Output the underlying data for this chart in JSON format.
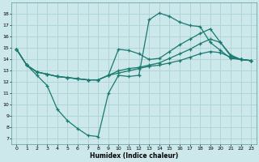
{
  "background_color": "#cce8ea",
  "grid_color": "#b0d4d8",
  "line_color": "#1a7a6e",
  "xlabel": "Humidex (Indice chaleur)",
  "xlim": [
    -0.5,
    23.5
  ],
  "ylim": [
    6.5,
    19.0
  ],
  "yticks": [
    7,
    8,
    9,
    10,
    11,
    12,
    13,
    14,
    15,
    16,
    17,
    18
  ],
  "xticks": [
    0,
    1,
    2,
    3,
    4,
    5,
    6,
    7,
    8,
    9,
    10,
    11,
    12,
    13,
    14,
    15,
    16,
    17,
    18,
    19,
    20,
    21,
    22,
    23
  ],
  "line1_x": [
    0,
    1,
    2,
    3,
    4,
    5,
    6,
    7,
    8,
    9,
    10,
    11,
    12,
    13,
    14,
    15,
    16,
    17,
    18,
    19,
    20,
    21,
    22,
    23
  ],
  "line1_y": [
    14.9,
    13.5,
    12.6,
    11.7,
    9.6,
    8.6,
    7.9,
    7.3,
    7.2,
    11.0,
    12.6,
    12.5,
    12.6,
    17.5,
    18.1,
    17.8,
    17.3,
    17.0,
    16.9,
    15.5,
    14.8,
    14.1,
    14.0,
    13.9
  ],
  "line2_x": [
    0,
    1,
    2,
    3,
    4,
    5,
    6,
    7,
    8,
    9,
    10,
    11,
    12,
    13,
    14,
    15,
    16,
    17,
    18,
    19,
    20,
    21,
    22,
    23
  ],
  "line2_y": [
    14.9,
    13.5,
    12.9,
    12.7,
    12.5,
    12.4,
    12.3,
    12.2,
    12.2,
    12.6,
    14.9,
    14.8,
    14.5,
    14.0,
    14.1,
    14.7,
    15.3,
    15.8,
    16.3,
    16.7,
    15.5,
    14.4,
    14.0,
    13.9
  ],
  "line3_x": [
    0,
    1,
    2,
    3,
    4,
    5,
    6,
    7,
    8,
    9,
    10,
    11,
    12,
    13,
    14,
    15,
    16,
    17,
    18,
    19,
    20,
    21,
    22,
    23
  ],
  "line3_y": [
    14.9,
    13.5,
    12.9,
    12.7,
    12.5,
    12.4,
    12.3,
    12.2,
    12.2,
    12.6,
    13.0,
    13.2,
    13.3,
    13.5,
    13.7,
    14.1,
    14.5,
    14.9,
    15.4,
    15.8,
    15.5,
    14.3,
    14.0,
    13.9
  ],
  "line4_x": [
    0,
    1,
    2,
    3,
    4,
    5,
    6,
    7,
    8,
    9,
    10,
    11,
    12,
    13,
    14,
    15,
    16,
    17,
    18,
    19,
    20,
    21,
    22,
    23
  ],
  "line4_y": [
    14.9,
    13.5,
    12.9,
    12.7,
    12.5,
    12.4,
    12.3,
    12.2,
    12.2,
    12.6,
    12.8,
    13.0,
    13.2,
    13.4,
    13.5,
    13.7,
    13.9,
    14.2,
    14.5,
    14.7,
    14.6,
    14.2,
    14.0,
    13.9
  ]
}
